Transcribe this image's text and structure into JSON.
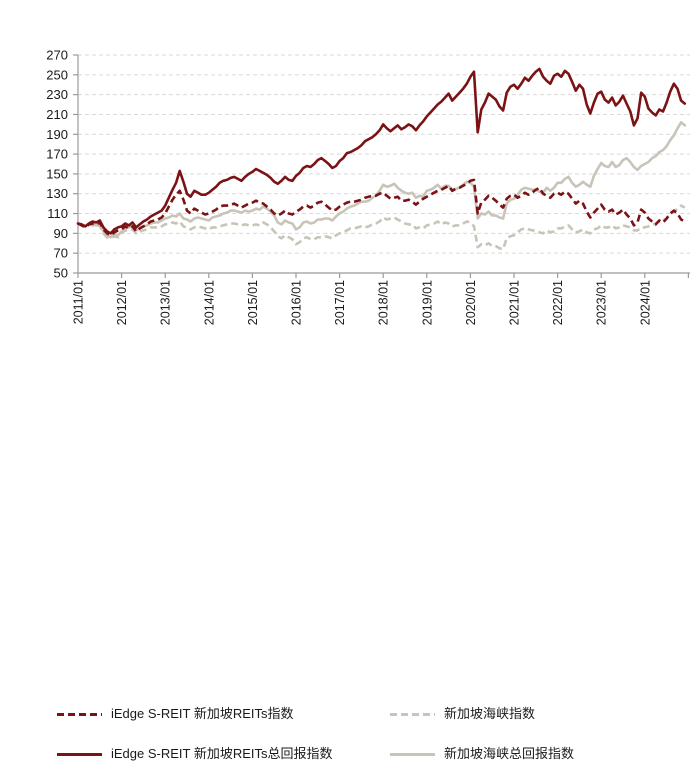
{
  "chart_data": {
    "type": "line",
    "title": "",
    "xlabel": "",
    "ylabel": "",
    "ylim": [
      50,
      270
    ],
    "y_ticks": [
      50,
      70,
      90,
      110,
      130,
      150,
      170,
      190,
      210,
      230,
      250,
      270
    ],
    "x_tick_labels": [
      "2011/01",
      "2012/01",
      "2013/01",
      "2014/01",
      "2015/01",
      "2016/01",
      "2017/01",
      "2018/01",
      "2019/01",
      "2020/01",
      "2021/01",
      "2022/01",
      "2023/01",
      "2024/01"
    ],
    "x_frequency": "monthly",
    "x_range": "2011/01 - 2024/12",
    "grid": "horizontal-dashed",
    "legend_position": "bottom",
    "colors": {
      "dark_red": "#7B1315",
      "warm_gray": "#C8C4B7",
      "gridline": "#D9D9D9",
      "axis": "#9B9B9B",
      "text": "#1a1a1a"
    },
    "series": [
      {
        "name": "iEdge S-REIT 新加坡REITs指数",
        "color": "#7B1315",
        "style": "dashed",
        "values": [
          100,
          98,
          96,
          99,
          100,
          99,
          101,
          94,
          90,
          88,
          91,
          93,
          94,
          97,
          95,
          97,
          92,
          95,
          97,
          99,
          102,
          103,
          104,
          106,
          110,
          117,
          124,
          129,
          133,
          124,
          113,
          110,
          115,
          113,
          111,
          109,
          110,
          112,
          114,
          117,
          118,
          118,
          119,
          120,
          118,
          116,
          118,
          120,
          121,
          123,
          121,
          120,
          117,
          114,
          110,
          108,
          110,
          113,
          110,
          109,
          112,
          114,
          117,
          118,
          116,
          118,
          121,
          122,
          119,
          116,
          113,
          114,
          117,
          119,
          121,
          122,
          122,
          123,
          124,
          126,
          127,
          128,
          128,
          130,
          131,
          128,
          125,
          126,
          127,
          123,
          123,
          124,
          122,
          119,
          122,
          125,
          127,
          129,
          131,
          133,
          134,
          136,
          138,
          133,
          135,
          136,
          138,
          140,
          143,
          144,
          110,
          121,
          124,
          128,
          126,
          123,
          119,
          116,
          125,
          128,
          129,
          126,
          128,
          131,
          129,
          131,
          134,
          136,
          130,
          128,
          126,
          130,
          131,
          129,
          132,
          130,
          125,
          120,
          123,
          120,
          112,
          106,
          111,
          115,
          119,
          114,
          112,
          114,
          109,
          111,
          114,
          109,
          105,
          98,
          101,
          114,
          111,
          105,
          102,
          99,
          103,
          101,
          105,
          110,
          113,
          110,
          104,
          102
        ]
      },
      {
        "name": "新加坡海峡指数",
        "color": "#C8C4B7",
        "style": "dashed",
        "values": [
          100,
          98,
          96,
          99,
          98,
          97,
          98,
          90,
          86,
          85,
          87,
          86,
          90,
          93,
          93,
          94,
          90,
          92,
          93,
          94,
          96,
          96,
          96,
          97,
          99,
          100,
          101,
          100,
          102,
          97,
          96,
          94,
          96,
          97,
          96,
          95,
          94,
          96,
          96,
          97,
          98,
          99,
          100,
          100,
          99,
          98,
          99,
          98,
          98,
          99,
          98,
          101,
          99,
          96,
          92,
          87,
          85,
          88,
          86,
          84,
          79,
          81,
          85,
          86,
          84,
          84,
          86,
          86,
          87,
          86,
          85,
          88,
          90,
          91,
          93,
          95,
          95,
          96,
          97,
          96,
          97,
          99,
          100,
          102,
          106,
          104,
          105,
          106,
          104,
          102,
          100,
          99,
          99,
          95,
          96,
          95,
          98,
          99,
          100,
          102,
          99,
          101,
          100,
          97,
          98,
          98,
          100,
          102,
          101,
          97,
          76,
          79,
          78,
          80,
          77,
          77,
          75,
          74,
          85,
          87,
          88,
          91,
          94,
          95,
          94,
          93,
          93,
          91,
          90,
          93,
          91,
          92,
          95,
          95,
          97,
          98,
          94,
          91,
          92,
          94,
          91,
          90,
          94,
          95,
          98,
          96,
          96,
          98,
          95,
          96,
          98,
          97,
          96,
          93,
          93,
          96,
          96,
          97,
          99,
          100,
          102,
          103,
          105,
          109,
          112,
          115,
          118,
          116
        ]
      },
      {
        "name": "iEdge S-REIT 新加坡REITs总回报指数",
        "color": "#7B1315",
        "style": "solid",
        "values": [
          100,
          99,
          97,
          100,
          102,
          101,
          103,
          96,
          92,
          90,
          94,
          96,
          97,
          100,
          98,
          101,
          96,
          99,
          102,
          104,
          107,
          109,
          111,
          113,
          118,
          126,
          134,
          141,
          153,
          142,
          130,
          127,
          133,
          131,
          129,
          129,
          131,
          134,
          137,
          141,
          143,
          144,
          146,
          147,
          145,
          143,
          147,
          150,
          152,
          155,
          153,
          151,
          149,
          146,
          142,
          140,
          143,
          147,
          144,
          143,
          148,
          151,
          156,
          158,
          157,
          160,
          164,
          166,
          163,
          160,
          156,
          158,
          163,
          166,
          171,
          172,
          174,
          176,
          179,
          183,
          185,
          187,
          190,
          194,
          200,
          196,
          193,
          196,
          199,
          195,
          197,
          200,
          198,
          194,
          199,
          203,
          208,
          212,
          216,
          220,
          223,
          227,
          231,
          224,
          228,
          232,
          236,
          241,
          248,
          253,
          192,
          215,
          222,
          231,
          228,
          225,
          218,
          214,
          232,
          238,
          240,
          236,
          241,
          247,
          244,
          249,
          253,
          256,
          248,
          244,
          241,
          249,
          251,
          248,
          254,
          251,
          243,
          234,
          240,
          236,
          220,
          211,
          222,
          231,
          233,
          225,
          222,
          227,
          219,
          223,
          229,
          221,
          213,
          199,
          206,
          232,
          228,
          216,
          212,
          209,
          215,
          213,
          222,
          233,
          241,
          236,
          224,
          221
        ]
      },
      {
        "name": "新加坡海峡总回报指数",
        "color": "#C8C4B7",
        "style": "solid",
        "values": [
          100,
          99,
          97,
          100,
          99,
          98,
          99,
          92,
          88,
          86,
          89,
          88,
          92,
          95,
          96,
          97,
          93,
          95,
          97,
          98,
          100,
          101,
          101,
          103,
          105,
          106,
          108,
          107,
          110,
          105,
          104,
          102,
          105,
          106,
          105,
          104,
          103,
          106,
          107,
          108,
          110,
          111,
          113,
          113,
          112,
          111,
          113,
          112,
          113,
          115,
          114,
          117,
          115,
          112,
          108,
          101,
          99,
          103,
          101,
          100,
          94,
          96,
          101,
          102,
          100,
          101,
          104,
          104,
          105,
          105,
          103,
          107,
          110,
          112,
          115,
          117,
          118,
          120,
          122,
          122,
          123,
          126,
          128,
          133,
          139,
          137,
          138,
          140,
          136,
          133,
          131,
          130,
          131,
          126,
          128,
          127,
          133,
          134,
          136,
          139,
          135,
          138,
          138,
          134,
          135,
          136,
          139,
          142,
          141,
          137,
          105,
          110,
          109,
          112,
          108,
          108,
          106,
          105,
          120,
          124,
          125,
          129,
          134,
          136,
          135,
          134,
          134,
          132,
          131,
          136,
          133,
          136,
          141,
          141,
          145,
          147,
          141,
          137,
          139,
          142,
          139,
          137,
          148,
          155,
          161,
          158,
          157,
          162,
          157,
          159,
          164,
          166,
          162,
          157,
          154,
          158,
          160,
          162,
          166,
          168,
          172,
          174,
          178,
          184,
          189,
          196,
          202,
          199
        ]
      }
    ]
  },
  "legend": {
    "rows": [
      {
        "left_series": 0,
        "right_series": 1
      },
      {
        "left_series": 2,
        "right_series": 3
      }
    ]
  }
}
